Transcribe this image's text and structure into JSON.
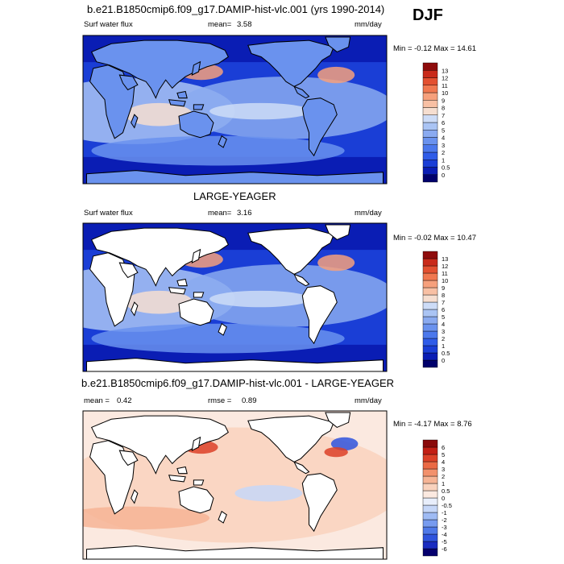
{
  "season": "DJF",
  "panels": [
    {
      "title": "b.e21.B1850cmip6.f09_g17.DAMIP-hist-vlc.001 (yrs 1990-2014)",
      "variable": "Surf water flux",
      "mean_label": "mean=",
      "mean": "3.58",
      "units": "mm/day",
      "minmax": "Min = -0.12 Max = 14.61"
    },
    {
      "title": "LARGE-YEAGER",
      "variable": "Surf water flux",
      "mean_label": "mean=",
      "mean": "3.16",
      "units": "mm/day",
      "minmax": "Min = -0.02 Max = 10.47"
    },
    {
      "title": "b.e21.B1850cmip6.f09_g17.DAMIP-hist-vlc.001 - LARGE-YEAGER",
      "mean_label": "mean =",
      "mean": "0.42",
      "rmse_label": "rmse =",
      "rmse": "0.89",
      "units": "mm/day",
      "minmax": "Min = -4.17 Max = 8.76"
    }
  ],
  "chart_data": [
    {
      "type": "heatmap",
      "title": "b.e21.B1850cmip6.f09_g17.DAMIP-hist-vlc.001 (yrs 1990-2014)",
      "variable": "Surf water flux",
      "units": "mm/day",
      "mean": 3.58,
      "min": -0.12,
      "max": 14.61,
      "colorbar_levels": [
        "0",
        "0.5",
        "1",
        "2",
        "3",
        "4",
        "5",
        "6",
        "7",
        "8",
        "9",
        "10",
        "11",
        "12",
        "13"
      ],
      "colorbar_colors": [
        "#00006b",
        "#0a1db4",
        "#1a3ed6",
        "#2f5ce8",
        "#4b78ec",
        "#6a92ee",
        "#8aaaf0",
        "#aac4f4",
        "#cddcf7",
        "#f6ded0",
        "#f8c0a4",
        "#f6a07c",
        "#f07850",
        "#e35030",
        "#c92a1a",
        "#8e0c0c"
      ]
    },
    {
      "type": "heatmap",
      "title": "LARGE-YEAGER",
      "variable": "Surf water flux",
      "units": "mm/day",
      "mean": 3.16,
      "min": -0.02,
      "max": 10.47,
      "colorbar_levels": [
        "0",
        "0.5",
        "1",
        "2",
        "3",
        "4",
        "5",
        "6",
        "7",
        "8",
        "9",
        "10",
        "11",
        "12",
        "13"
      ],
      "colorbar_colors": [
        "#00006b",
        "#0a1db4",
        "#1a3ed6",
        "#2f5ce8",
        "#4b78ec",
        "#6a92ee",
        "#8aaaf0",
        "#aac4f4",
        "#cddcf7",
        "#f6ded0",
        "#f8c0a4",
        "#f6a07c",
        "#f07850",
        "#e35030",
        "#c92a1a",
        "#8e0c0c"
      ]
    },
    {
      "type": "heatmap",
      "title": "b.e21.B1850cmip6.f09_g17.DAMIP-hist-vlc.001 - LARGE-YEAGER",
      "units": "mm/day",
      "mean": 0.42,
      "rmse": 0.89,
      "min": -4.17,
      "max": 8.76,
      "colorbar_levels": [
        "-6",
        "-5",
        "-4",
        "-3",
        "-2",
        "-1",
        "-0.5",
        "0",
        "0.5",
        "1",
        "2",
        "3",
        "4",
        "5",
        "6"
      ],
      "colorbar_colors": [
        "#06006e",
        "#1a2cc0",
        "#2f54dd",
        "#4f79e8",
        "#779bef",
        "#9fbbf4",
        "#c6d7f8",
        "#e8eefb",
        "#fbe9e0",
        "#f9d2bd",
        "#f6b495",
        "#f2916c",
        "#ea6a45",
        "#dc4128",
        "#c21f14",
        "#8a0a0a"
      ]
    }
  ]
}
